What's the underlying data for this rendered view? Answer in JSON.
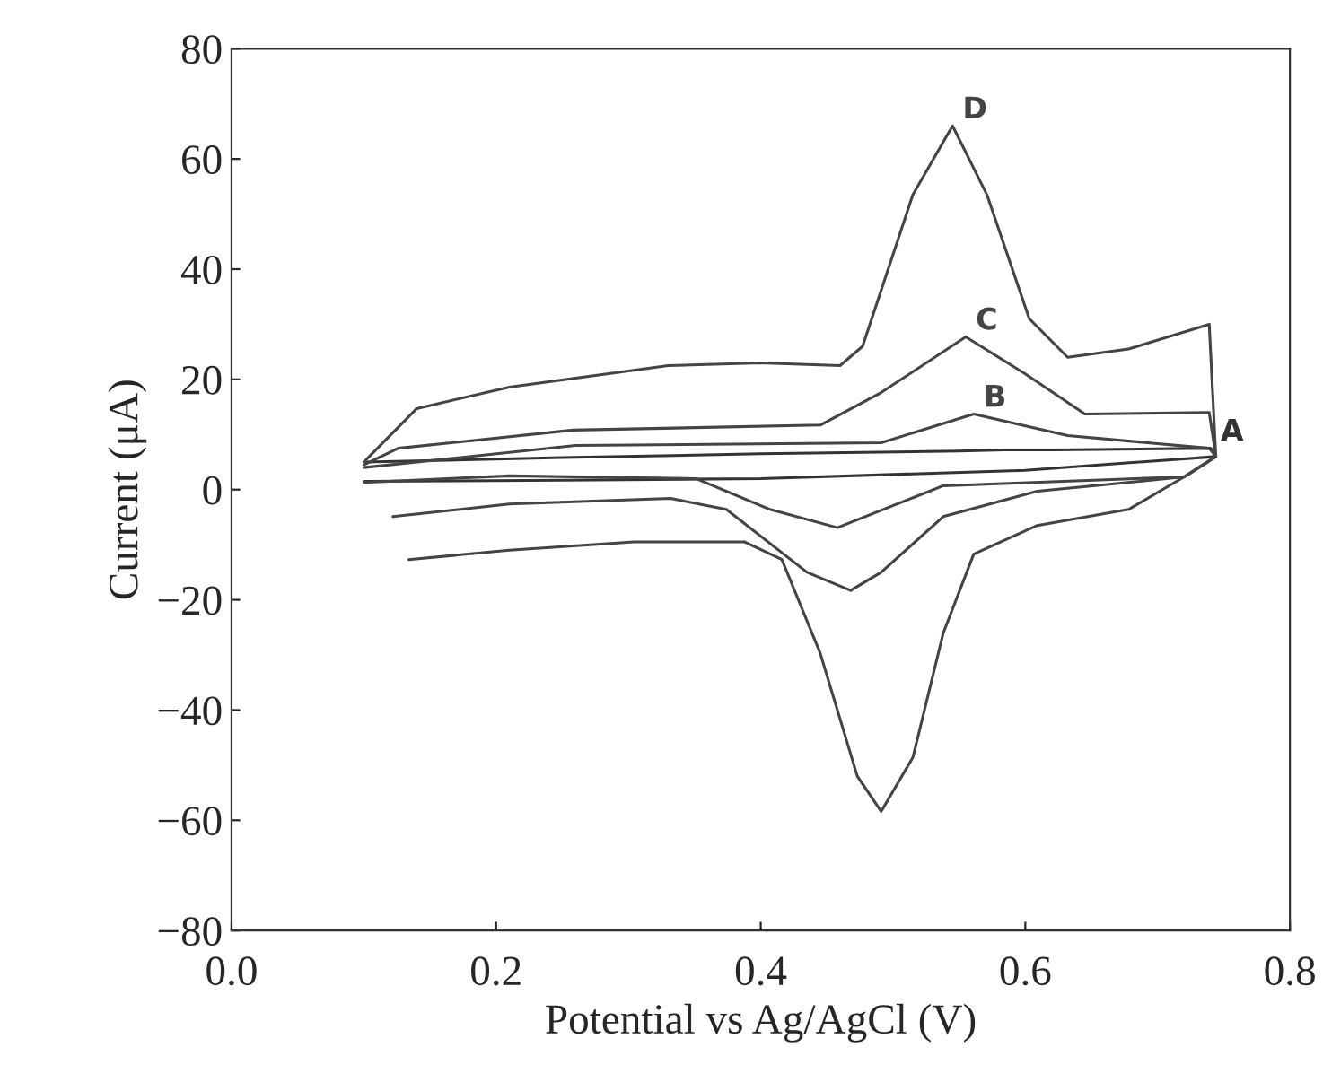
{
  "chart_data": {
    "type": "line",
    "xlabel": "Potential vs Ag/AgCl (V)",
    "ylabel": "Current (μA)",
    "xlim": [
      0.0,
      0.8
    ],
    "xticks": [
      {
        "value": 0.0,
        "label": "0.0"
      },
      0.2,
      0.4,
      0.6,
      0.8
    ],
    "ylim": [
      -80,
      80
    ],
    "yticks": [
      -80,
      -60,
      -40,
      -20,
      0,
      20,
      40,
      60,
      80
    ],
    "grid": false,
    "legend": false,
    "marker": "none",
    "line_style": "solid",
    "series": [
      {
        "name": "A",
        "color": "#333333",
        "x": [
          0.1,
          0.25,
          0.4,
          0.55,
          0.584,
          0.62,
          0.74,
          0.744,
          0.6,
          0.4,
          0.25,
          0.1
        ],
        "values": [
          5,
          5.8,
          6.5,
          7,
          7.2,
          7.2,
          7.5,
          6,
          3.5,
          2,
          1.7,
          1.5
        ]
      },
      {
        "name": "B",
        "color": "#444444",
        "x": [
          0.1,
          0.26,
          0.491,
          0.561,
          0.632,
          0.739,
          0.744,
          0.72,
          0.538,
          0.458,
          0.407,
          0.351,
          0.21,
          0.1
        ],
        "values": [
          4,
          8,
          8.5,
          13.7,
          9.8,
          7.5,
          6,
          2.3,
          0.7,
          -6.9,
          -3.6,
          2,
          2.5,
          1.3
        ]
      },
      {
        "name": "C",
        "color": "#444444",
        "x": [
          0.1,
          0.126,
          0.258,
          0.445,
          0.491,
          0.555,
          0.6,
          0.645,
          0.739,
          0.744,
          0.72,
          0.609,
          0.538,
          0.491,
          0.468,
          0.435,
          0.374,
          0.332,
          0.21,
          0.122
        ],
        "values": [
          4.5,
          7.5,
          10.8,
          11.7,
          17.6,
          27.7,
          21,
          13.7,
          14,
          6,
          2.3,
          -0.3,
          -4.9,
          -15,
          -18.3,
          -15,
          -3.6,
          -1.6,
          -2.6,
          -4.9
        ]
      },
      {
        "name": "D",
        "color": "#444444",
        "x": [
          0.1,
          0.14,
          0.21,
          0.33,
          0.4,
          0.46,
          0.477,
          0.515,
          0.545,
          0.571,
          0.603,
          0.632,
          0.678,
          0.739,
          0.744,
          0.725,
          0.678,
          0.609,
          0.561,
          0.538,
          0.515,
          0.491,
          0.473,
          0.445,
          0.416,
          0.388,
          0.304,
          0.21,
          0.134
        ],
        "values": [
          5,
          14.7,
          18.6,
          22.5,
          23,
          22.5,
          26,
          53.5,
          66,
          53.5,
          31,
          24,
          25.5,
          30,
          6,
          3,
          -3.6,
          -6.5,
          -11.7,
          -26,
          -48.6,
          -58.4,
          -52,
          -29.7,
          -12.7,
          -9.5,
          -9.5,
          -11,
          -12.7
        ]
      }
    ]
  }
}
